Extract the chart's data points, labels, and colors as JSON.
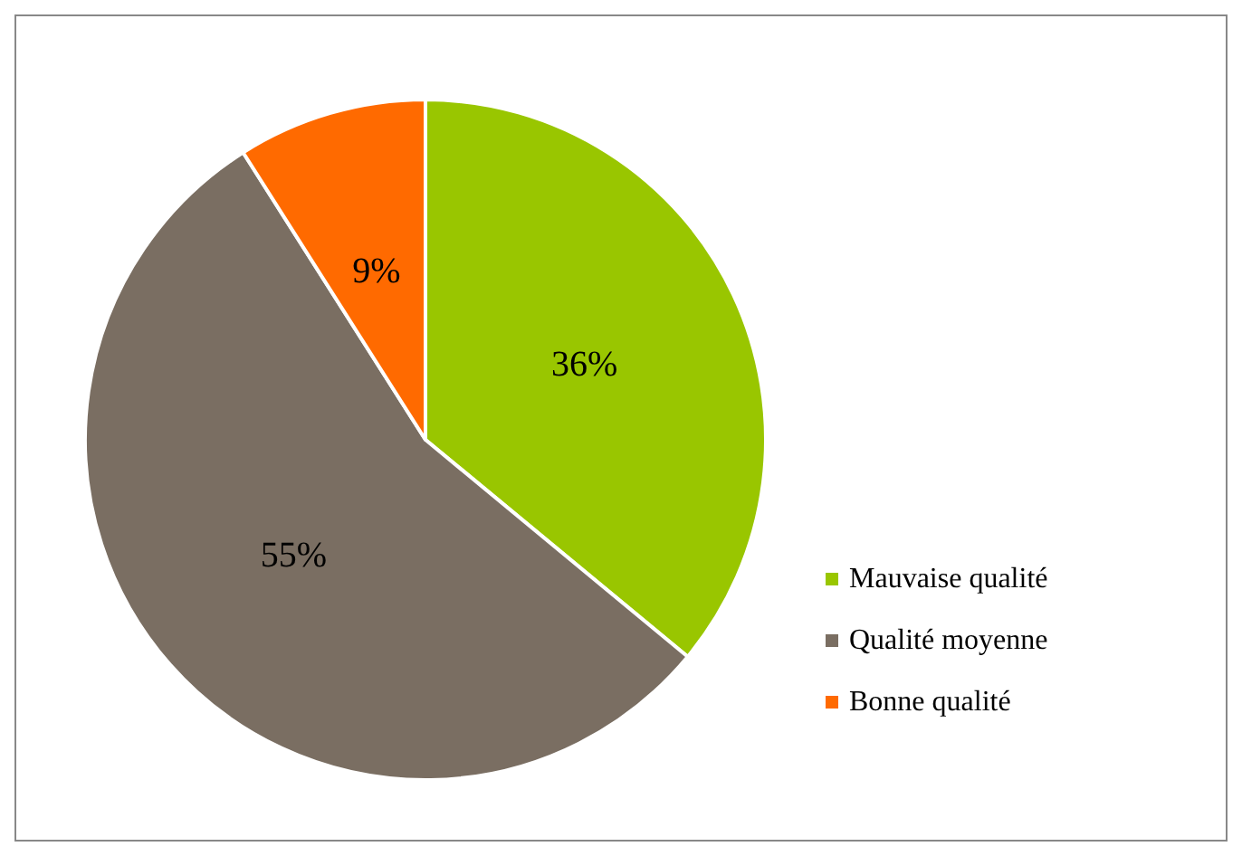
{
  "chart_data": {
    "type": "pie",
    "categories": [
      "Mauvaise qualité",
      "Qualité moyenne",
      "Bonne qualité"
    ],
    "values": [
      36,
      55,
      9
    ],
    "colors": [
      "#99c600",
      "#7a6e62",
      "#ff6a00"
    ],
    "value_labels": [
      "36%",
      "55%",
      "9%"
    ],
    "legend": "right"
  }
}
